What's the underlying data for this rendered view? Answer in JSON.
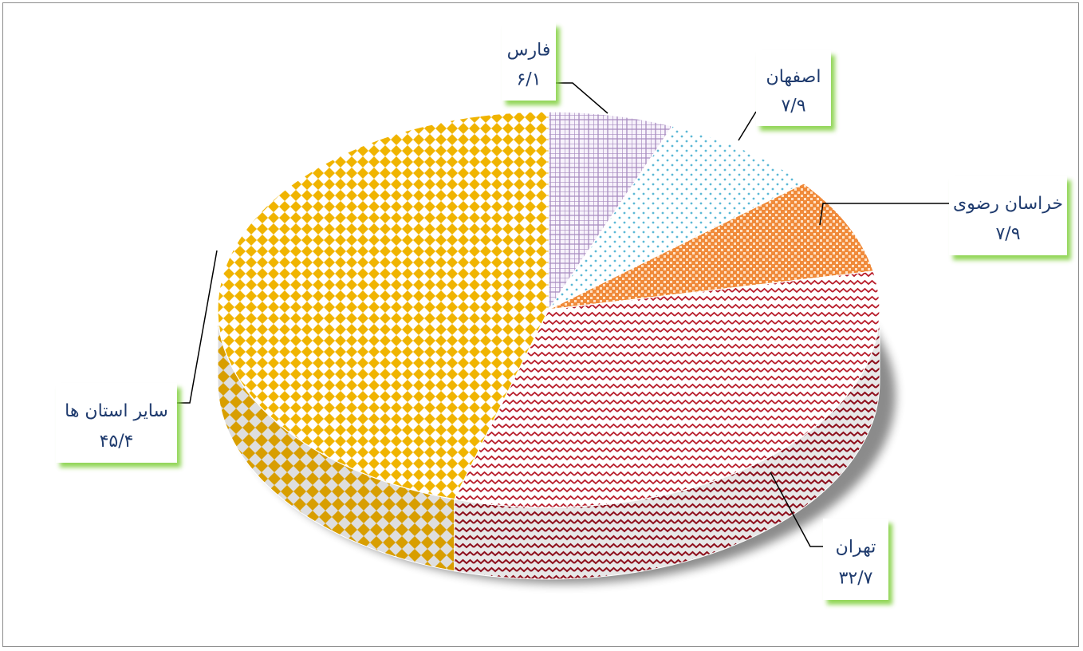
{
  "chart_data": {
    "type": "pie",
    "title": "",
    "slices": [
      {
        "label": "فارس",
        "value_label": "۶/۱",
        "value": 6.1,
        "color": "#a78bbf"
      },
      {
        "label": "اصفهان",
        "value_label": "۷/۹",
        "value": 7.9,
        "color": "#5bb8d6"
      },
      {
        "label": "خراسان رضوی",
        "value_label": "۷/۹",
        "value": 7.9,
        "color": "#f08a3a"
      },
      {
        "label": "تهران",
        "value_label": "۳۲/۷",
        "value": 32.7,
        "color": "#b81c2a"
      },
      {
        "label": "سایر استان ها",
        "value_label": "۴۵/۴",
        "value": 45.4,
        "color": "#f0b400"
      }
    ]
  }
}
